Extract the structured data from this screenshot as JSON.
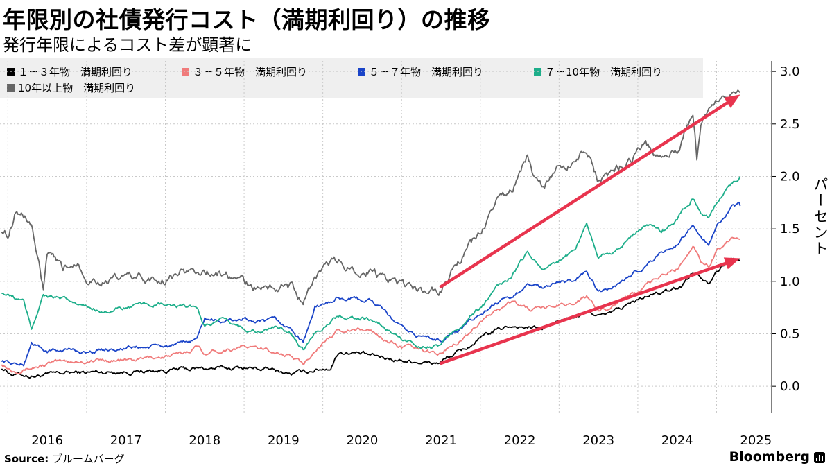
{
  "header": {
    "title": "年限別の社債発行コスト（満期利回り）の推移",
    "subtitle": "発行年限によるコスト差が顕著に"
  },
  "footer": {
    "source_label": "Source:",
    "source_text": "ブルームバーグ",
    "brand": "Bloomberg"
  },
  "colors": {
    "y1_3": "#000000",
    "y3_5": "#f07b7b",
    "y5_7": "#1a44c8",
    "y7_10": "#1dae8a",
    "y10plus": "#666666",
    "arrow": "#e8344e",
    "grid": "#c9c9c9"
  },
  "chart_data": {
    "type": "line",
    "ylabel": "パーセント",
    "ylim": [
      -0.25,
      3.1
    ],
    "yticks": [
      "0.0",
      "0.5",
      "1.0",
      "1.5",
      "2.0",
      "2.5",
      "3.0"
    ],
    "xlim": [
      2015.9,
      2025.7
    ],
    "xticks": [
      "2016",
      "2017",
      "2018",
      "2019",
      "2020",
      "2021",
      "2022",
      "2023",
      "2024",
      "2025"
    ],
    "legend_position": "top",
    "series": [
      {
        "name": "１－３年物　満期利回り",
        "color_key": "y1_3",
        "points": [
          [
            2015.92,
            0.18
          ],
          [
            2016.05,
            0.12
          ],
          [
            2016.3,
            0.1
          ],
          [
            2016.55,
            0.11
          ],
          [
            2016.8,
            0.13
          ],
          [
            2017.0,
            0.13
          ],
          [
            2017.3,
            0.14
          ],
          [
            2017.6,
            0.14
          ],
          [
            2017.9,
            0.15
          ],
          [
            2018.2,
            0.16
          ],
          [
            2018.5,
            0.17
          ],
          [
            2018.8,
            0.17
          ],
          [
            2019.0,
            0.18
          ],
          [
            2019.3,
            0.16
          ],
          [
            2019.6,
            0.12
          ],
          [
            2019.75,
            0.13
          ],
          [
            2019.9,
            0.16
          ],
          [
            2020.1,
            0.18
          ],
          [
            2020.2,
            0.33
          ],
          [
            2020.4,
            0.32
          ],
          [
            2020.6,
            0.29
          ],
          [
            2020.8,
            0.27
          ],
          [
            2021.0,
            0.25
          ],
          [
            2021.2,
            0.24
          ],
          [
            2021.4,
            0.22
          ],
          [
            2021.5,
            0.23
          ],
          [
            2021.6,
            0.28
          ],
          [
            2021.8,
            0.35
          ],
          [
            2022.0,
            0.45
          ],
          [
            2022.2,
            0.53
          ],
          [
            2022.4,
            0.58
          ],
          [
            2022.6,
            0.56
          ],
          [
            2022.8,
            0.55
          ],
          [
            2023.0,
            0.62
          ],
          [
            2023.2,
            0.66
          ],
          [
            2023.4,
            0.7
          ],
          [
            2023.6,
            0.67
          ],
          [
            2023.8,
            0.75
          ],
          [
            2024.0,
            0.82
          ],
          [
            2024.2,
            0.88
          ],
          [
            2024.4,
            0.9
          ],
          [
            2024.55,
            0.95
          ],
          [
            2024.7,
            1.1
          ],
          [
            2024.8,
            1.05
          ],
          [
            2024.9,
            1.0
          ],
          [
            2025.0,
            1.12
          ],
          [
            2025.2,
            1.22
          ],
          [
            2025.3,
            1.2
          ]
        ]
      },
      {
        "name": "３－５年物　満期利回り",
        "color_key": "y3_5",
        "points": [
          [
            2015.92,
            0.22
          ],
          [
            2016.05,
            0.16
          ],
          [
            2016.3,
            0.18
          ],
          [
            2016.55,
            0.22
          ],
          [
            2016.8,
            0.24
          ],
          [
            2017.0,
            0.24
          ],
          [
            2017.3,
            0.25
          ],
          [
            2017.6,
            0.25
          ],
          [
            2017.9,
            0.28
          ],
          [
            2018.2,
            0.3
          ],
          [
            2018.4,
            0.38
          ],
          [
            2018.5,
            0.32
          ],
          [
            2018.8,
            0.36
          ],
          [
            2019.0,
            0.38
          ],
          [
            2019.2,
            0.35
          ],
          [
            2019.4,
            0.33
          ],
          [
            2019.6,
            0.29
          ],
          [
            2019.75,
            0.2
          ],
          [
            2019.9,
            0.36
          ],
          [
            2020.1,
            0.45
          ],
          [
            2020.2,
            0.55
          ],
          [
            2020.4,
            0.54
          ],
          [
            2020.6,
            0.53
          ],
          [
            2020.8,
            0.45
          ],
          [
            2021.0,
            0.38
          ],
          [
            2021.2,
            0.35
          ],
          [
            2021.4,
            0.32
          ],
          [
            2021.5,
            0.31
          ],
          [
            2021.6,
            0.38
          ],
          [
            2021.8,
            0.48
          ],
          [
            2022.0,
            0.62
          ],
          [
            2022.2,
            0.72
          ],
          [
            2022.4,
            0.8
          ],
          [
            2022.6,
            0.74
          ],
          [
            2022.8,
            0.73
          ],
          [
            2023.0,
            0.78
          ],
          [
            2023.2,
            0.8
          ],
          [
            2023.35,
            0.85
          ],
          [
            2023.5,
            0.72
          ],
          [
            2023.7,
            0.78
          ],
          [
            2023.9,
            0.88
          ],
          [
            2024.1,
            0.95
          ],
          [
            2024.3,
            1.05
          ],
          [
            2024.5,
            1.12
          ],
          [
            2024.7,
            1.35
          ],
          [
            2024.8,
            1.2
          ],
          [
            2024.9,
            1.15
          ],
          [
            2025.0,
            1.3
          ],
          [
            2025.2,
            1.42
          ],
          [
            2025.3,
            1.4
          ]
        ]
      },
      {
        "name": "５－７年物　満期利回り",
        "color_key": "y5_7",
        "points": [
          [
            2015.92,
            0.25
          ],
          [
            2016.05,
            0.22
          ],
          [
            2016.2,
            0.2
          ],
          [
            2016.3,
            0.42
          ],
          [
            2016.5,
            0.33
          ],
          [
            2016.8,
            0.35
          ],
          [
            2017.0,
            0.32
          ],
          [
            2017.3,
            0.36
          ],
          [
            2017.6,
            0.37
          ],
          [
            2017.9,
            0.38
          ],
          [
            2018.2,
            0.39
          ],
          [
            2018.4,
            0.45
          ],
          [
            2018.5,
            0.65
          ],
          [
            2018.7,
            0.62
          ],
          [
            2018.9,
            0.62
          ],
          [
            2019.0,
            0.65
          ],
          [
            2019.2,
            0.6
          ],
          [
            2019.4,
            0.62
          ],
          [
            2019.6,
            0.54
          ],
          [
            2019.75,
            0.42
          ],
          [
            2019.9,
            0.75
          ],
          [
            2020.1,
            0.8
          ],
          [
            2020.2,
            0.85
          ],
          [
            2020.4,
            0.83
          ],
          [
            2020.6,
            0.82
          ],
          [
            2020.8,
            0.7
          ],
          [
            2021.0,
            0.55
          ],
          [
            2021.2,
            0.48
          ],
          [
            2021.4,
            0.45
          ],
          [
            2021.5,
            0.44
          ],
          [
            2021.6,
            0.5
          ],
          [
            2021.8,
            0.58
          ],
          [
            2022.0,
            0.68
          ],
          [
            2022.2,
            0.8
          ],
          [
            2022.4,
            0.82
          ],
          [
            2022.6,
            1.0
          ],
          [
            2022.8,
            0.92
          ],
          [
            2023.0,
            0.98
          ],
          [
            2023.2,
            1.02
          ],
          [
            2023.35,
            1.1
          ],
          [
            2023.5,
            0.88
          ],
          [
            2023.7,
            0.95
          ],
          [
            2023.9,
            1.05
          ],
          [
            2024.1,
            1.15
          ],
          [
            2024.3,
            1.28
          ],
          [
            2024.5,
            1.35
          ],
          [
            2024.7,
            1.55
          ],
          [
            2024.8,
            1.4
          ],
          [
            2024.9,
            1.35
          ],
          [
            2025.0,
            1.5
          ],
          [
            2025.2,
            1.7
          ],
          [
            2025.3,
            1.72
          ]
        ]
      },
      {
        "name": "７－10年物　満期利回り",
        "color_key": "y7_10",
        "points": [
          [
            2015.92,
            0.9
          ],
          [
            2016.05,
            0.85
          ],
          [
            2016.2,
            0.8
          ],
          [
            2016.3,
            0.55
          ],
          [
            2016.45,
            0.88
          ],
          [
            2016.8,
            0.8
          ],
          [
            2017.0,
            0.75
          ],
          [
            2017.3,
            0.72
          ],
          [
            2017.6,
            0.76
          ],
          [
            2017.9,
            0.78
          ],
          [
            2018.2,
            0.75
          ],
          [
            2018.4,
            0.76
          ],
          [
            2018.5,
            0.58
          ],
          [
            2018.7,
            0.62
          ],
          [
            2018.9,
            0.58
          ],
          [
            2019.0,
            0.55
          ],
          [
            2019.2,
            0.52
          ],
          [
            2019.4,
            0.56
          ],
          [
            2019.6,
            0.5
          ],
          [
            2019.75,
            0.36
          ],
          [
            2019.9,
            0.52
          ],
          [
            2020.1,
            0.62
          ],
          [
            2020.2,
            0.68
          ],
          [
            2020.4,
            0.66
          ],
          [
            2020.6,
            0.64
          ],
          [
            2020.8,
            0.55
          ],
          [
            2021.0,
            0.45
          ],
          [
            2021.2,
            0.4
          ],
          [
            2021.4,
            0.38
          ],
          [
            2021.5,
            0.39
          ],
          [
            2021.6,
            0.48
          ],
          [
            2021.8,
            0.62
          ],
          [
            2022.0,
            0.75
          ],
          [
            2022.2,
            0.92
          ],
          [
            2022.4,
            1.05
          ],
          [
            2022.6,
            1.28
          ],
          [
            2022.8,
            1.12
          ],
          [
            2023.0,
            1.2
          ],
          [
            2023.2,
            1.3
          ],
          [
            2023.35,
            1.55
          ],
          [
            2023.5,
            1.25
          ],
          [
            2023.7,
            1.3
          ],
          [
            2023.9,
            1.4
          ],
          [
            2024.1,
            1.55
          ],
          [
            2024.3,
            1.48
          ],
          [
            2024.5,
            1.6
          ],
          [
            2024.7,
            1.8
          ],
          [
            2024.8,
            1.65
          ],
          [
            2024.9,
            1.6
          ],
          [
            2025.0,
            1.75
          ],
          [
            2025.2,
            1.95
          ],
          [
            2025.3,
            2.0
          ]
        ]
      },
      {
        "name": "10年以上物　満期利回り",
        "color_key": "y10plus",
        "points": [
          [
            2015.92,
            1.5
          ],
          [
            2016.0,
            1.45
          ],
          [
            2016.1,
            1.7
          ],
          [
            2016.3,
            1.55
          ],
          [
            2016.45,
            0.9
          ],
          [
            2016.5,
            1.25
          ],
          [
            2016.7,
            1.1
          ],
          [
            2016.9,
            1.2
          ],
          [
            2017.0,
            1.05
          ],
          [
            2017.3,
            1.0
          ],
          [
            2017.6,
            1.05
          ],
          [
            2017.9,
            1.0
          ],
          [
            2018.2,
            1.08
          ],
          [
            2018.5,
            1.1
          ],
          [
            2018.8,
            1.05
          ],
          [
            2019.0,
            0.98
          ],
          [
            2019.2,
            0.92
          ],
          [
            2019.4,
            0.95
          ],
          [
            2019.6,
            0.95
          ],
          [
            2019.75,
            0.78
          ],
          [
            2019.9,
            1.05
          ],
          [
            2020.1,
            1.15
          ],
          [
            2020.2,
            1.18
          ],
          [
            2020.4,
            1.12
          ],
          [
            2020.6,
            1.1
          ],
          [
            2020.8,
            1.0
          ],
          [
            2021.0,
            0.95
          ],
          [
            2021.2,
            0.9
          ],
          [
            2021.4,
            0.92
          ],
          [
            2021.5,
            0.93
          ],
          [
            2021.6,
            1.05
          ],
          [
            2021.8,
            1.25
          ],
          [
            2022.0,
            1.45
          ],
          [
            2022.2,
            1.75
          ],
          [
            2022.4,
            1.85
          ],
          [
            2022.6,
            2.2
          ],
          [
            2022.7,
            1.95
          ],
          [
            2022.8,
            1.9
          ],
          [
            2023.0,
            2.05
          ],
          [
            2023.2,
            2.15
          ],
          [
            2023.35,
            2.3
          ],
          [
            2023.5,
            1.95
          ],
          [
            2023.7,
            2.05
          ],
          [
            2023.9,
            2.15
          ],
          [
            2024.1,
            2.3
          ],
          [
            2024.3,
            2.15
          ],
          [
            2024.5,
            2.25
          ],
          [
            2024.7,
            2.6
          ],
          [
            2024.75,
            2.2
          ],
          [
            2024.8,
            2.5
          ],
          [
            2024.9,
            2.65
          ],
          [
            2025.0,
            2.75
          ],
          [
            2025.2,
            2.85
          ],
          [
            2025.3,
            2.8
          ]
        ]
      }
    ],
    "annotations": [
      {
        "kind": "arrow",
        "from": [
          2021.5,
          0.95
        ],
        "to": [
          2025.3,
          2.78
        ]
      },
      {
        "kind": "arrow",
        "from": [
          2021.5,
          0.22
        ],
        "to": [
          2025.3,
          1.22
        ]
      }
    ]
  }
}
